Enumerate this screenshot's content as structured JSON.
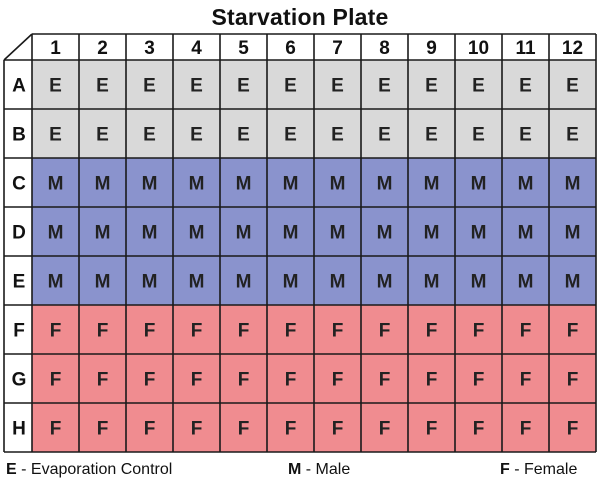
{
  "title": "Starvation Plate",
  "columns": [
    "1",
    "2",
    "3",
    "4",
    "5",
    "6",
    "7",
    "8",
    "9",
    "10",
    "11",
    "12"
  ],
  "rows": [
    {
      "label": "A",
      "code": "E"
    },
    {
      "label": "B",
      "code": "E"
    },
    {
      "label": "C",
      "code": "M"
    },
    {
      "label": "D",
      "code": "M"
    },
    {
      "label": "E",
      "code": "M"
    },
    {
      "label": "F",
      "code": "F"
    },
    {
      "label": "G",
      "code": "F"
    },
    {
      "label": "H",
      "code": "F"
    }
  ],
  "colors": {
    "E": "#d9d9d9",
    "M": "#8a93cd",
    "F": "#f08c90"
  },
  "legend": {
    "E": {
      "code": "E",
      "text": " - Evaporation Control"
    },
    "M": {
      "code": "M",
      "text": " - Male"
    },
    "F": {
      "code": "F",
      "text": " - Female"
    }
  }
}
